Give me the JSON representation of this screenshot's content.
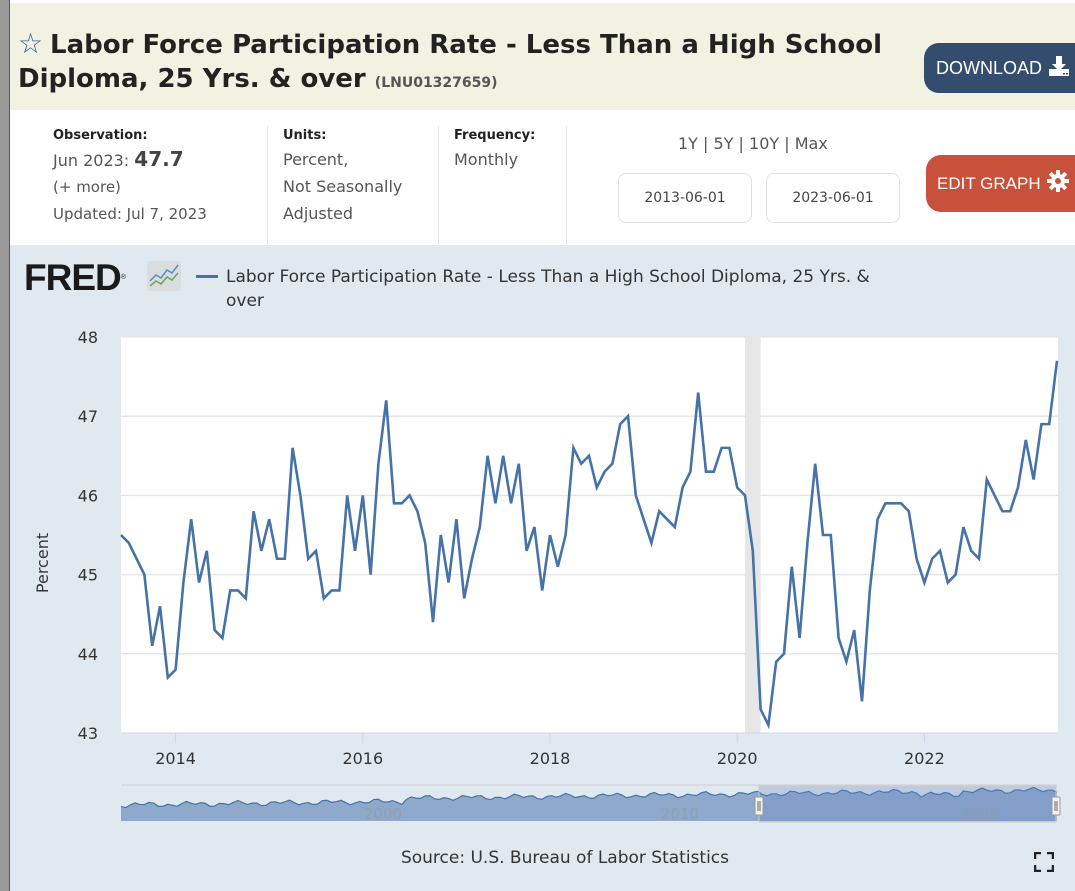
{
  "header": {
    "title": "Labor Force Participation Rate - Less Than a High School Diploma, 25 Yrs. & over",
    "series_id": "(LNU01327659)",
    "star_icon": "star-outline-icon",
    "download_label": "DOWNLOAD",
    "download_icon": "download-icon"
  },
  "meta": {
    "observation_label": "Observation:",
    "observation_date": "Jun 2023:",
    "observation_value": "47.7",
    "more_link": "(+ more)",
    "updated": "Updated: Jul 7, 2023",
    "units_label": "Units:",
    "units_line1": "Percent,",
    "units_line2": "Not Seasonally",
    "units_line3": "Adjusted",
    "frequency_label": "Frequency:",
    "frequency_value": "Monthly",
    "range_options": [
      "1Y",
      "5Y",
      "10Y",
      "Max"
    ],
    "range_separator": " | ",
    "start_date": "2013-06-01",
    "end_date": "2023-06-01",
    "edit_label": "EDIT GRAPH",
    "edit_icon": "gear-icon"
  },
  "logo": {
    "text": "FRED",
    "registered": "®"
  },
  "source": "Source: U.S. Bureau of Labor Statistics",
  "colors": {
    "series": "#4572a7",
    "download_button": "#344c6e",
    "edit_button": "#c8513c",
    "header_bg": "#f1f2e1",
    "chart_bg": "#e1e9f0",
    "recession": "#e6e6e6"
  },
  "chart_data": {
    "type": "line",
    "title": "Labor Force Participation Rate - Less Than a High School Diploma, 25 Yrs. & over",
    "legend": [
      "Labor Force Participation Rate - Less Than a High School Diploma, 25 Yrs. & over"
    ],
    "legend_position": "top-left",
    "xlabel": "",
    "ylabel": "Percent",
    "ylim": [
      43,
      48
    ],
    "yticks": [
      43,
      44,
      45,
      46,
      47,
      48
    ],
    "xticks": [
      "2014",
      "2016",
      "2018",
      "2020",
      "2022"
    ],
    "xtick_years": [
      2014,
      2016,
      2018,
      2020,
      2022
    ],
    "x_start": "2013-06",
    "x_end": "2023-06",
    "frequency": "monthly",
    "grid": true,
    "recession_shading": [
      {
        "start": "2020-02",
        "end": "2020-04"
      }
    ],
    "series": [
      {
        "name": "LNU01327659",
        "values": [
          45.5,
          45.4,
          45.2,
          45.0,
          44.1,
          44.6,
          43.7,
          43.8,
          44.9,
          45.7,
          44.9,
          45.3,
          44.3,
          44.2,
          44.8,
          44.8,
          44.7,
          45.8,
          45.3,
          45.7,
          45.2,
          45.2,
          46.6,
          46.0,
          45.2,
          45.3,
          44.7,
          44.8,
          44.8,
          46.0,
          45.3,
          46.0,
          45.0,
          46.4,
          47.2,
          45.9,
          45.9,
          46.0,
          45.8,
          45.4,
          44.4,
          45.5,
          44.9,
          45.7,
          44.7,
          45.2,
          45.6,
          46.5,
          45.9,
          46.5,
          45.9,
          46.4,
          45.3,
          45.6,
          44.8,
          45.5,
          45.1,
          45.5,
          46.6,
          46.4,
          46.5,
          46.1,
          46.3,
          46.4,
          46.9,
          47.0,
          46.0,
          45.7,
          45.4,
          45.8,
          45.7,
          45.6,
          46.1,
          46.3,
          47.3,
          46.3,
          46.3,
          46.6,
          46.6,
          46.1,
          46.0,
          45.3,
          43.3,
          43.1,
          43.9,
          44.0,
          45.1,
          44.2,
          45.4,
          46.4,
          45.5,
          45.5,
          44.2,
          43.9,
          44.3,
          43.4,
          44.8,
          45.7,
          45.9,
          45.9,
          45.9,
          45.8,
          45.2,
          44.9,
          45.2,
          45.3,
          44.9,
          45.0,
          45.6,
          45.3,
          45.2,
          46.2,
          46.0,
          45.8,
          45.8,
          46.1,
          46.7,
          46.2,
          46.9,
          46.9,
          47.7
        ]
      }
    ],
    "navigator": {
      "xticks": [
        "2000",
        "2010",
        "2020"
      ],
      "selected_range": [
        "2013-06",
        "2023-06"
      ]
    }
  }
}
